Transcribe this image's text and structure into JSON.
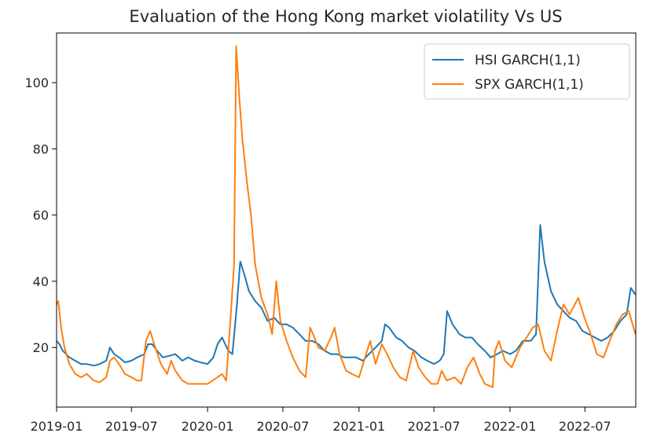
{
  "chart_data": {
    "type": "line",
    "title": "Evaluation of the Hong Kong market violatility Vs US",
    "xlabel": "",
    "ylabel": "",
    "xlim": [
      "2019-01-01",
      "2022-11-01"
    ],
    "ylim": [
      2,
      115
    ],
    "x_ticks": [
      "2019-01",
      "2019-07",
      "2020-01",
      "2020-07",
      "2021-01",
      "2021-07",
      "2022-01",
      "2022-07"
    ],
    "y_ticks": [
      20,
      40,
      60,
      80,
      100
    ],
    "grid": false,
    "legend_position": "top-right",
    "series": [
      {
        "name": "HSI GARCH(1,1)",
        "color": "#1f77b4",
        "points": [
          [
            "2019-01-01",
            22
          ],
          [
            "2019-01-08",
            21
          ],
          [
            "2019-01-16",
            19
          ],
          [
            "2019-01-24",
            18
          ],
          [
            "2019-02-01",
            17
          ],
          [
            "2019-02-15",
            16
          ],
          [
            "2019-03-01",
            15
          ],
          [
            "2019-03-15",
            15
          ],
          [
            "2019-04-01",
            14.5
          ],
          [
            "2019-04-15",
            15
          ],
          [
            "2019-05-01",
            16
          ],
          [
            "2019-05-10",
            20
          ],
          [
            "2019-05-20",
            18
          ],
          [
            "2019-06-01",
            17
          ],
          [
            "2019-06-15",
            15.5
          ],
          [
            "2019-07-01",
            16
          ],
          [
            "2019-07-15",
            17
          ],
          [
            "2019-08-01",
            18
          ],
          [
            "2019-08-10",
            21
          ],
          [
            "2019-08-20",
            21
          ],
          [
            "2019-09-01",
            19
          ],
          [
            "2019-09-15",
            17
          ],
          [
            "2019-10-01",
            17.5
          ],
          [
            "2019-10-15",
            18
          ],
          [
            "2019-11-01",
            16
          ],
          [
            "2019-11-15",
            17
          ],
          [
            "2019-12-01",
            16
          ],
          [
            "2019-12-15",
            15.5
          ],
          [
            "2020-01-01",
            15
          ],
          [
            "2020-01-15",
            17
          ],
          [
            "2020-01-25",
            21
          ],
          [
            "2020-02-05",
            23
          ],
          [
            "2020-02-20",
            19
          ],
          [
            "2020-03-01",
            18
          ],
          [
            "2020-03-12",
            33
          ],
          [
            "2020-03-20",
            46
          ],
          [
            "2020-03-30",
            42
          ],
          [
            "2020-04-10",
            37
          ],
          [
            "2020-04-25",
            34
          ],
          [
            "2020-05-10",
            32
          ],
          [
            "2020-05-25",
            28
          ],
          [
            "2020-06-10",
            29
          ],
          [
            "2020-06-25",
            27
          ],
          [
            "2020-07-10",
            27
          ],
          [
            "2020-07-25",
            26
          ],
          [
            "2020-08-10",
            24
          ],
          [
            "2020-08-25",
            22
          ],
          [
            "2020-09-10",
            22
          ],
          [
            "2020-09-25",
            21
          ],
          [
            "2020-10-10",
            19
          ],
          [
            "2020-10-25",
            18
          ],
          [
            "2020-11-10",
            18
          ],
          [
            "2020-11-25",
            17
          ],
          [
            "2020-12-10",
            17
          ],
          [
            "2020-12-25",
            17
          ],
          [
            "2021-01-10",
            16
          ],
          [
            "2021-01-25",
            18
          ],
          [
            "2021-02-10",
            20
          ],
          [
            "2021-02-25",
            22
          ],
          [
            "2021-03-05",
            27
          ],
          [
            "2021-03-15",
            26
          ],
          [
            "2021-04-01",
            23
          ],
          [
            "2021-04-15",
            22
          ],
          [
            "2021-05-01",
            20
          ],
          [
            "2021-05-15",
            19
          ],
          [
            "2021-06-01",
            17
          ],
          [
            "2021-06-15",
            16
          ],
          [
            "2021-07-01",
            15
          ],
          [
            "2021-07-15",
            16
          ],
          [
            "2021-07-25",
            18
          ],
          [
            "2021-08-02",
            31
          ],
          [
            "2021-08-15",
            27
          ],
          [
            "2021-09-01",
            24
          ],
          [
            "2021-09-15",
            23
          ],
          [
            "2021-10-01",
            23
          ],
          [
            "2021-10-15",
            21
          ],
          [
            "2021-11-01",
            19
          ],
          [
            "2021-11-15",
            17
          ],
          [
            "2021-12-01",
            18
          ],
          [
            "2021-12-15",
            19
          ],
          [
            "2022-01-01",
            18
          ],
          [
            "2022-01-15",
            19
          ],
          [
            "2022-02-01",
            22
          ],
          [
            "2022-02-20",
            22
          ],
          [
            "2022-03-05",
            24
          ],
          [
            "2022-03-15",
            57
          ],
          [
            "2022-03-25",
            46
          ],
          [
            "2022-04-10",
            37
          ],
          [
            "2022-04-25",
            33
          ],
          [
            "2022-05-10",
            31
          ],
          [
            "2022-05-25",
            29
          ],
          [
            "2022-06-10",
            28
          ],
          [
            "2022-06-25",
            25
          ],
          [
            "2022-07-10",
            24
          ],
          [
            "2022-07-25",
            23
          ],
          [
            "2022-08-10",
            22
          ],
          [
            "2022-08-25",
            23
          ],
          [
            "2022-09-10",
            25
          ],
          [
            "2022-09-25",
            28
          ],
          [
            "2022-10-10",
            30
          ],
          [
            "2022-10-20",
            38
          ],
          [
            "2022-10-31",
            36
          ]
        ]
      },
      {
        "name": "SPX GARCH(1,1)",
        "color": "#ff7f0e",
        "points": [
          [
            "2019-01-01",
            33
          ],
          [
            "2019-01-05",
            34
          ],
          [
            "2019-01-12",
            26
          ],
          [
            "2019-01-20",
            20
          ],
          [
            "2019-02-01",
            15
          ],
          [
            "2019-02-15",
            12
          ],
          [
            "2019-03-01",
            11
          ],
          [
            "2019-03-15",
            12
          ],
          [
            "2019-04-01",
            10
          ],
          [
            "2019-04-15",
            9.5
          ],
          [
            "2019-05-01",
            11
          ],
          [
            "2019-05-10",
            16
          ],
          [
            "2019-05-20",
            17
          ],
          [
            "2019-06-01",
            15
          ],
          [
            "2019-06-15",
            12
          ],
          [
            "2019-07-01",
            11
          ],
          [
            "2019-07-15",
            10
          ],
          [
            "2019-07-25",
            10
          ],
          [
            "2019-08-05",
            22
          ],
          [
            "2019-08-15",
            25
          ],
          [
            "2019-08-25",
            21
          ],
          [
            "2019-09-10",
            15
          ],
          [
            "2019-09-25",
            12
          ],
          [
            "2019-10-05",
            16
          ],
          [
            "2019-10-15",
            13
          ],
          [
            "2019-11-01",
            10
          ],
          [
            "2019-11-15",
            9
          ],
          [
            "2019-12-01",
            9
          ],
          [
            "2019-12-15",
            9
          ],
          [
            "2020-01-01",
            9
          ],
          [
            "2020-01-25",
            11
          ],
          [
            "2020-02-05",
            12
          ],
          [
            "2020-02-15",
            10
          ],
          [
            "2020-02-25",
            28
          ],
          [
            "2020-03-05",
            45
          ],
          [
            "2020-03-10",
            111
          ],
          [
            "2020-03-18",
            95
          ],
          [
            "2020-03-25",
            83
          ],
          [
            "2020-04-05",
            70
          ],
          [
            "2020-04-15",
            60
          ],
          [
            "2020-04-25",
            45
          ],
          [
            "2020-05-10",
            35
          ],
          [
            "2020-05-25",
            30
          ],
          [
            "2020-06-05",
            24
          ],
          [
            "2020-06-15",
            40
          ],
          [
            "2020-06-25",
            28
          ],
          [
            "2020-07-10",
            22
          ],
          [
            "2020-07-25",
            17
          ],
          [
            "2020-08-10",
            13
          ],
          [
            "2020-08-25",
            11
          ],
          [
            "2020-09-05",
            26
          ],
          [
            "2020-09-15",
            23
          ],
          [
            "2020-09-25",
            20
          ],
          [
            "2020-10-10",
            19
          ],
          [
            "2020-10-25",
            23
          ],
          [
            "2020-11-03",
            26
          ],
          [
            "2020-11-15",
            18
          ],
          [
            "2020-12-01",
            13
          ],
          [
            "2020-12-15",
            12
          ],
          [
            "2021-01-01",
            11
          ],
          [
            "2021-01-28",
            22
          ],
          [
            "2021-02-10",
            15
          ],
          [
            "2021-02-25",
            21
          ],
          [
            "2021-03-10",
            18
          ],
          [
            "2021-03-25",
            14
          ],
          [
            "2021-04-10",
            11
          ],
          [
            "2021-04-25",
            10
          ],
          [
            "2021-05-12",
            19
          ],
          [
            "2021-05-25",
            14
          ],
          [
            "2021-06-10",
            11
          ],
          [
            "2021-06-25",
            9
          ],
          [
            "2021-07-10",
            9
          ],
          [
            "2021-07-20",
            13
          ],
          [
            "2021-08-01",
            10
          ],
          [
            "2021-08-20",
            11
          ],
          [
            "2021-09-05",
            9
          ],
          [
            "2021-09-20",
            14
          ],
          [
            "2021-10-05",
            17
          ],
          [
            "2021-10-20",
            12
          ],
          [
            "2021-11-01",
            9
          ],
          [
            "2021-11-20",
            8
          ],
          [
            "2021-11-26",
            19
          ],
          [
            "2021-12-05",
            22
          ],
          [
            "2021-12-20",
            16
          ],
          [
            "2022-01-05",
            14
          ],
          [
            "2022-01-25",
            20
          ],
          [
            "2022-02-10",
            23
          ],
          [
            "2022-02-25",
            26
          ],
          [
            "2022-03-10",
            27
          ],
          [
            "2022-03-25",
            19
          ],
          [
            "2022-04-10",
            16
          ],
          [
            "2022-04-25",
            25
          ],
          [
            "2022-05-10",
            33
          ],
          [
            "2022-05-25",
            30
          ],
          [
            "2022-06-15",
            35
          ],
          [
            "2022-06-30",
            29
          ],
          [
            "2022-07-15",
            24
          ],
          [
            "2022-07-30",
            18
          ],
          [
            "2022-08-15",
            17
          ],
          [
            "2022-08-30",
            22
          ],
          [
            "2022-09-15",
            27
          ],
          [
            "2022-09-30",
            30
          ],
          [
            "2022-10-15",
            31
          ],
          [
            "2022-10-31",
            24
          ]
        ]
      }
    ]
  }
}
